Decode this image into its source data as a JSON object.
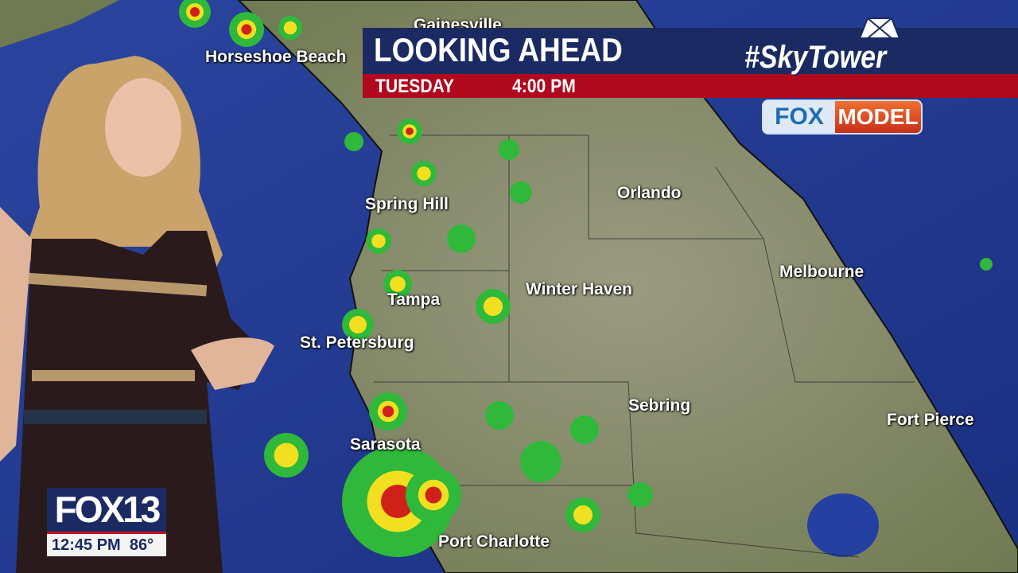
{
  "broadcast": {
    "title": "LOOKING AHEAD",
    "day": "TUESDAY",
    "time": "4:00 PM",
    "brand_tag": "#SkyTower",
    "model_badge": {
      "left": "FOX",
      "right": "MODEL"
    },
    "station_logo": "FOX13",
    "clock": "12:45 PM",
    "temperature": "86°"
  },
  "map": {
    "cities": [
      "Gainesville",
      "Horseshoe Beach",
      "Spring Hill",
      "Orlando",
      "Melbourne",
      "Tampa",
      "Winter Haven",
      "St. Petersburg",
      "Sebring",
      "Fort Pierce",
      "Sarasota",
      "Port Charlotte"
    ]
  },
  "colors": {
    "banner_blue": "#1b2a63",
    "banner_red": "#b0081c",
    "ocean": "#1f3a8a",
    "land": "#8a8f6a",
    "radar_green": "#2fb83a",
    "radar_yellow": "#f2e020",
    "radar_red": "#d0201a"
  }
}
